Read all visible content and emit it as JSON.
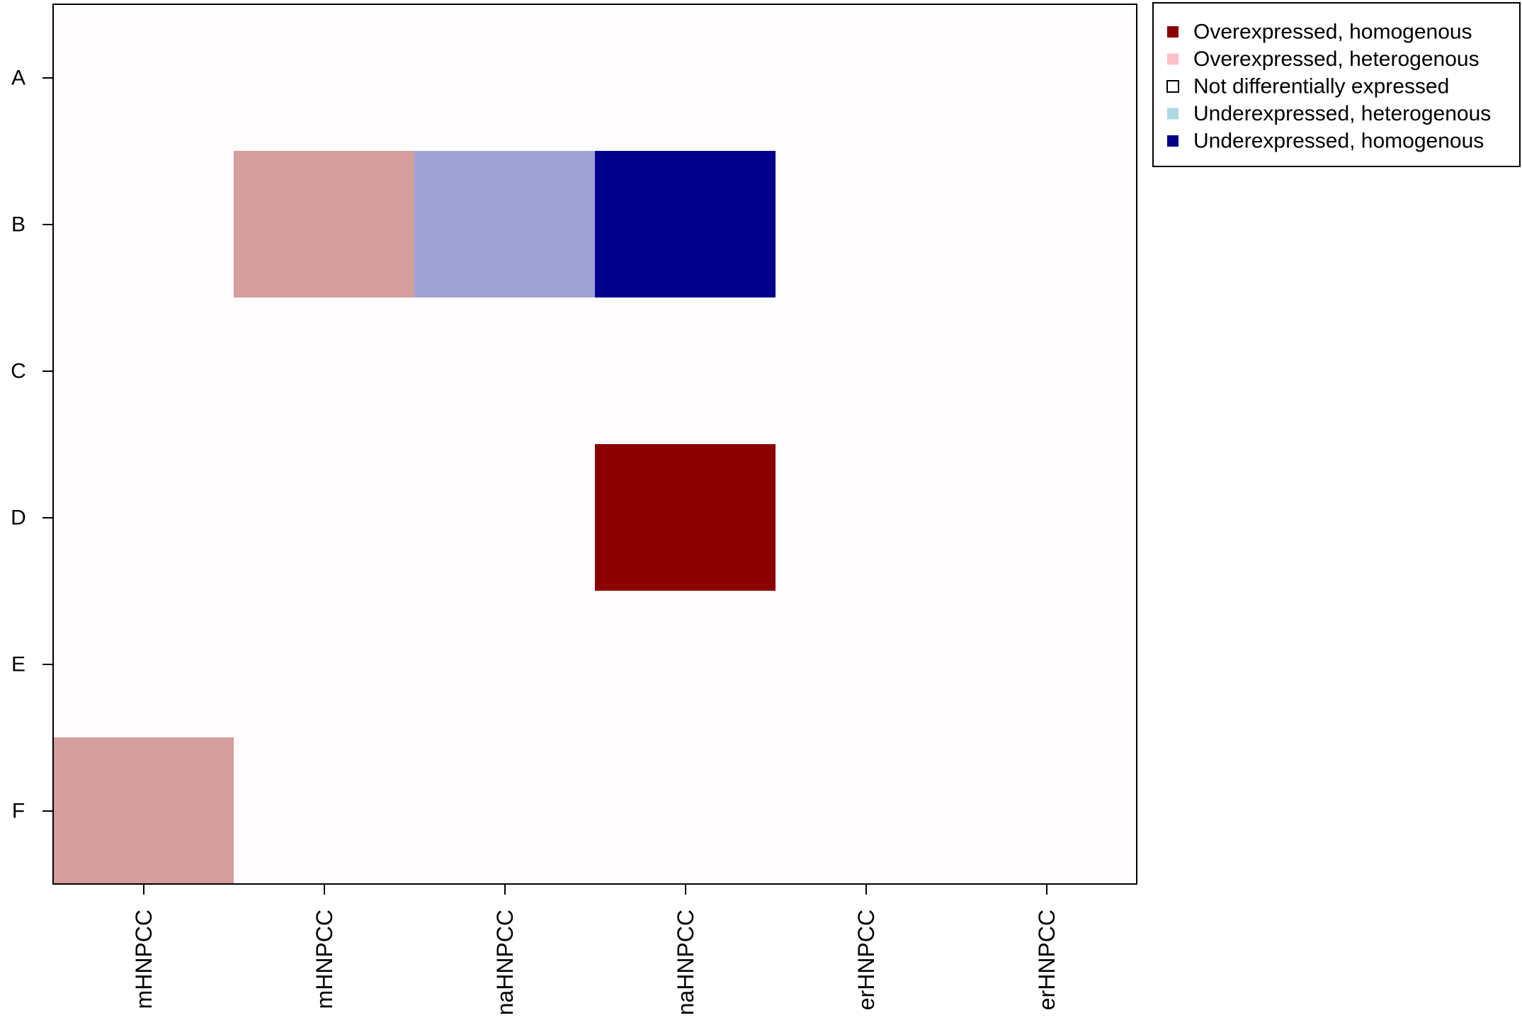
{
  "chart_data": {
    "type": "heatmap",
    "title": "",
    "xlabel": "",
    "ylabel": "",
    "columns": [
      "mHNPCC",
      "mHNPCC",
      "naHNPCC",
      "naHNPCC",
      "erHNPCC",
      "erHNPCC"
    ],
    "rows": [
      "A",
      "B",
      "C",
      "D",
      "E",
      "F"
    ],
    "cells": [
      {
        "row": "B",
        "col_index": 1,
        "status": "Overexpressed, heterogenous",
        "fill": "#d49e9e"
      },
      {
        "row": "B",
        "col_index": 2,
        "status": "Underexpressed, heterogenous",
        "fill": "#a1a3d5"
      },
      {
        "row": "B",
        "col_index": 3,
        "status": "Underexpressed, homogenous",
        "fill": "#00008b"
      },
      {
        "row": "D",
        "col_index": 3,
        "status": "Overexpressed, homogenous",
        "fill": "#8b0000"
      },
      {
        "row": "F",
        "col_index": 0,
        "status": "Overexpressed, heterogenous",
        "fill": "#d49e9e"
      }
    ],
    "background_fill": "#fffdfd",
    "grid": false,
    "legend_position": "top-right",
    "legend": [
      {
        "label": "Overexpressed, homogenous",
        "color": "#8b0000",
        "filled": true
      },
      {
        "label": "Overexpressed, heterogenous",
        "color": "#ffc0cb",
        "filled": true
      },
      {
        "label": "Not differentially expressed",
        "color": "#ffffff",
        "filled": false
      },
      {
        "label": "Underexpressed, heterogenous",
        "color": "#add8e6",
        "filled": true
      },
      {
        "label": "Underexpressed, homogenous",
        "color": "#00008b",
        "filled": true
      }
    ]
  }
}
